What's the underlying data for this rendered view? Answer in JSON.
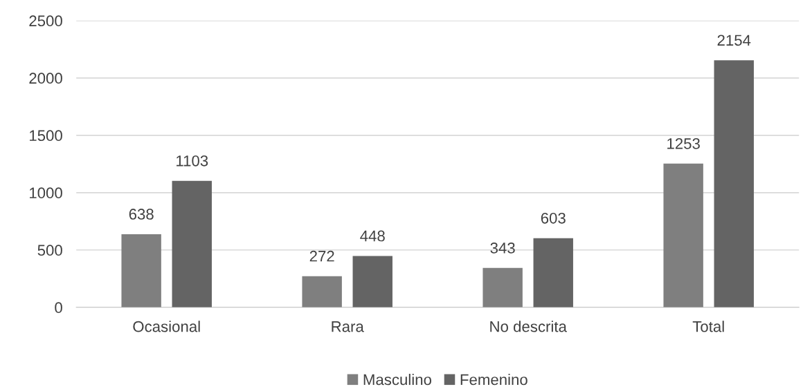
{
  "chart_data": {
    "type": "bar",
    "categories": [
      "Ocasional",
      "Rara",
      "No descrita",
      "Total"
    ],
    "series": [
      {
        "name": "Masculino",
        "color": "#7f7f7f",
        "values": [
          638,
          272,
          343,
          1253
        ]
      },
      {
        "name": "Femenino",
        "color": "#646464",
        "values": [
          1103,
          448,
          603,
          2154
        ]
      }
    ],
    "ylim": [
      0,
      2500
    ],
    "yticks": [
      0,
      500,
      1000,
      1500,
      2000,
      2500
    ],
    "grid": "y",
    "legend": "bottom",
    "data_labels": true
  }
}
